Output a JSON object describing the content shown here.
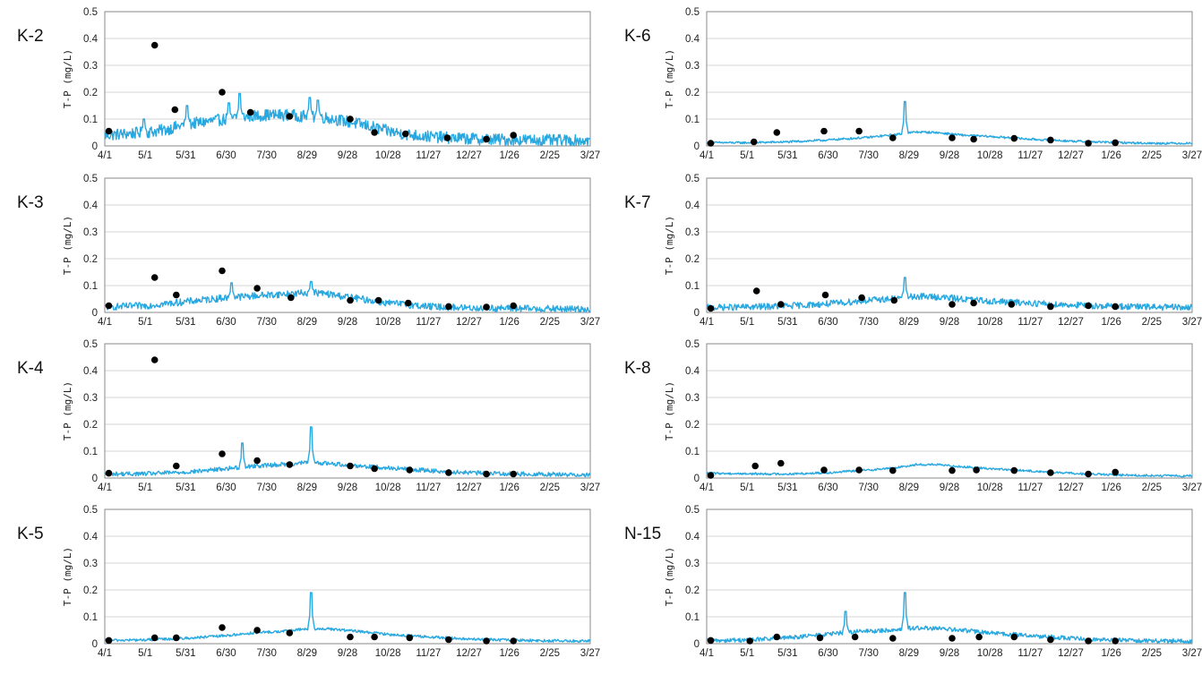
{
  "figure": {
    "line_color": "#29a8e0",
    "point_color": "#000000"
  },
  "chart_data": [
    {
      "type": "line",
      "station": "K-2",
      "ylabel": "T-P (mg/L)",
      "ylim": [
        0,
        0.5
      ],
      "yticks": [
        "0",
        "0.1",
        "0.2",
        "0.3",
        "0.4",
        "0.5"
      ],
      "xticks": [
        "4/1",
        "5/1",
        "5/31",
        "6/30",
        "7/30",
        "8/29",
        "9/28",
        "10/28",
        "11/27",
        "12/27",
        "1/26",
        "2/25",
        "3/27"
      ],
      "grid": true,
      "continuous_base": [
        [
          0,
          0.04
        ],
        [
          15,
          0.045
        ],
        [
          30,
          0.05
        ],
        [
          45,
          0.06
        ],
        [
          60,
          0.08
        ],
        [
          75,
          0.09
        ],
        [
          90,
          0.1
        ],
        [
          105,
          0.11
        ],
        [
          120,
          0.115
        ],
        [
          135,
          0.115
        ],
        [
          150,
          0.11
        ],
        [
          165,
          0.105
        ],
        [
          180,
          0.09
        ],
        [
          195,
          0.075
        ],
        [
          210,
          0.055
        ],
        [
          225,
          0.042
        ],
        [
          240,
          0.035
        ],
        [
          255,
          0.03
        ],
        [
          270,
          0.027
        ],
        [
          285,
          0.025
        ],
        [
          300,
          0.023
        ],
        [
          315,
          0.022
        ],
        [
          330,
          0.021
        ],
        [
          345,
          0.02
        ],
        [
          360,
          0.02
        ]
      ],
      "continuous_noise": 0.022,
      "continuous_spikes": [
        [
          29,
          0.1
        ],
        [
          61,
          0.15
        ],
        [
          92,
          0.16
        ],
        [
          100,
          0.195
        ],
        [
          152,
          0.18
        ],
        [
          158,
          0.17
        ]
      ],
      "samples": [
        [
          3,
          0.055
        ],
        [
          37,
          0.375
        ],
        [
          52,
          0.135
        ],
        [
          87,
          0.2
        ],
        [
          108,
          0.125
        ],
        [
          137,
          0.11
        ],
        [
          182,
          0.1
        ],
        [
          200,
          0.05
        ],
        [
          223,
          0.045
        ],
        [
          254,
          0.03
        ],
        [
          283,
          0.025
        ],
        [
          303,
          0.04
        ]
      ]
    },
    {
      "type": "line",
      "station": "K-6",
      "ylabel": "T-P (mg/L)",
      "ylim": [
        0,
        0.5
      ],
      "yticks": [
        "0",
        "0.1",
        "0.2",
        "0.3",
        "0.4",
        "0.5"
      ],
      "xticks": [
        "4/1",
        "5/1",
        "5/31",
        "6/30",
        "7/30",
        "8/29",
        "9/28",
        "10/28",
        "11/27",
        "12/27",
        "1/26",
        "2/25",
        "3/27"
      ],
      "grid": true,
      "continuous_base": [
        [
          0,
          0.012
        ],
        [
          30,
          0.012
        ],
        [
          60,
          0.015
        ],
        [
          90,
          0.022
        ],
        [
          120,
          0.032
        ],
        [
          140,
          0.042
        ],
        [
          155,
          0.052
        ],
        [
          170,
          0.05
        ],
        [
          190,
          0.04
        ],
        [
          210,
          0.035
        ],
        [
          240,
          0.025
        ],
        [
          270,
          0.018
        ],
        [
          300,
          0.013
        ],
        [
          330,
          0.01
        ],
        [
          360,
          0.01
        ]
      ],
      "continuous_noise": 0.004,
      "continuous_spikes": [
        [
          147,
          0.165
        ]
      ],
      "samples": [
        [
          3,
          0.01
        ],
        [
          35,
          0.015
        ],
        [
          52,
          0.05
        ],
        [
          87,
          0.055
        ],
        [
          113,
          0.055
        ],
        [
          138,
          0.03
        ],
        [
          182,
          0.03
        ],
        [
          198,
          0.025
        ],
        [
          228,
          0.028
        ],
        [
          255,
          0.022
        ],
        [
          283,
          0.01
        ],
        [
          303,
          0.012
        ]
      ]
    },
    {
      "type": "line",
      "station": "K-3",
      "ylabel": "T-P (mg/L)",
      "ylim": [
        0,
        0.5
      ],
      "yticks": [
        "0",
        "0.1",
        "0.2",
        "0.3",
        "0.4",
        "0.5"
      ],
      "xticks": [
        "4/1",
        "5/1",
        "5/31",
        "6/30",
        "7/30",
        "8/29",
        "9/28",
        "10/28",
        "11/27",
        "12/27",
        "1/26",
        "2/25",
        "3/27"
      ],
      "grid": true,
      "continuous_base": [
        [
          0,
          0.02
        ],
        [
          30,
          0.025
        ],
        [
          50,
          0.035
        ],
        [
          70,
          0.045
        ],
        [
          90,
          0.055
        ],
        [
          105,
          0.06
        ],
        [
          120,
          0.065
        ],
        [
          140,
          0.07
        ],
        [
          155,
          0.075
        ],
        [
          170,
          0.065
        ],
        [
          190,
          0.05
        ],
        [
          210,
          0.035
        ],
        [
          240,
          0.022
        ],
        [
          270,
          0.017
        ],
        [
          300,
          0.015
        ],
        [
          330,
          0.013
        ],
        [
          360,
          0.012
        ]
      ],
      "continuous_noise": 0.013,
      "continuous_spikes": [
        [
          94,
          0.11
        ],
        [
          153,
          0.115
        ]
      ],
      "samples": [
        [
          3,
          0.025
        ],
        [
          37,
          0.13
        ],
        [
          53,
          0.065
        ],
        [
          87,
          0.155
        ],
        [
          113,
          0.09
        ],
        [
          138,
          0.055
        ],
        [
          182,
          0.045
        ],
        [
          203,
          0.045
        ],
        [
          225,
          0.035
        ],
        [
          255,
          0.022
        ],
        [
          283,
          0.02
        ],
        [
          303,
          0.025
        ]
      ]
    },
    {
      "type": "line",
      "station": "K-7",
      "ylabel": "T-P (mg/L)",
      "ylim": [
        0,
        0.5
      ],
      "yticks": [
        "0",
        "0.1",
        "0.2",
        "0.3",
        "0.4",
        "0.5"
      ],
      "xticks": [
        "4/1",
        "5/1",
        "5/31",
        "6/30",
        "7/30",
        "8/29",
        "9/28",
        "10/28",
        "11/27",
        "12/27",
        "1/26",
        "2/25",
        "3/27"
      ],
      "grid": true,
      "continuous_base": [
        [
          0,
          0.018
        ],
        [
          30,
          0.02
        ],
        [
          60,
          0.024
        ],
        [
          90,
          0.032
        ],
        [
          120,
          0.045
        ],
        [
          140,
          0.052
        ],
        [
          155,
          0.06
        ],
        [
          170,
          0.058
        ],
        [
          190,
          0.05
        ],
        [
          210,
          0.042
        ],
        [
          240,
          0.035
        ],
        [
          270,
          0.028
        ],
        [
          300,
          0.023
        ],
        [
          330,
          0.02
        ],
        [
          360,
          0.018
        ]
      ],
      "continuous_noise": 0.012,
      "continuous_spikes": [
        [
          147,
          0.13
        ]
      ],
      "samples": [
        [
          3,
          0.015
        ],
        [
          37,
          0.08
        ],
        [
          55,
          0.03
        ],
        [
          88,
          0.065
        ],
        [
          115,
          0.055
        ],
        [
          139,
          0.045
        ],
        [
          182,
          0.03
        ],
        [
          198,
          0.035
        ],
        [
          226,
          0.03
        ],
        [
          255,
          0.022
        ],
        [
          283,
          0.025
        ],
        [
          303,
          0.022
        ]
      ]
    },
    {
      "type": "line",
      "station": "K-4",
      "ylabel": "T-P (mg/L)",
      "ylim": [
        0,
        0.5
      ],
      "yticks": [
        "0",
        "0.1",
        "0.2",
        "0.3",
        "0.4",
        "0.5"
      ],
      "xticks": [
        "4/1",
        "5/1",
        "5/31",
        "6/30",
        "7/30",
        "8/29",
        "9/28",
        "10/28",
        "11/27",
        "12/27",
        "1/26",
        "2/25",
        "3/27"
      ],
      "grid": true,
      "continuous_base": [
        [
          0,
          0.015
        ],
        [
          30,
          0.016
        ],
        [
          60,
          0.022
        ],
        [
          90,
          0.035
        ],
        [
          110,
          0.045
        ],
        [
          130,
          0.05
        ],
        [
          150,
          0.058
        ],
        [
          165,
          0.055
        ],
        [
          190,
          0.045
        ],
        [
          210,
          0.038
        ],
        [
          240,
          0.028
        ],
        [
          270,
          0.02
        ],
        [
          300,
          0.016
        ],
        [
          330,
          0.014
        ],
        [
          360,
          0.012
        ]
      ],
      "continuous_noise": 0.008,
      "continuous_spikes": [
        [
          102,
          0.13
        ],
        [
          153,
          0.19
        ]
      ],
      "samples": [
        [
          3,
          0.018
        ],
        [
          37,
          0.44
        ],
        [
          53,
          0.045
        ],
        [
          87,
          0.09
        ],
        [
          113,
          0.065
        ],
        [
          137,
          0.05
        ],
        [
          182,
          0.045
        ],
        [
          200,
          0.035
        ],
        [
          226,
          0.03
        ],
        [
          255,
          0.02
        ],
        [
          283,
          0.015
        ],
        [
          303,
          0.015
        ]
      ]
    },
    {
      "type": "line",
      "station": "K-8",
      "ylabel": "T-P (mg/L)",
      "ylim": [
        0,
        0.5
      ],
      "yticks": [
        "0",
        "0.1",
        "0.2",
        "0.3",
        "0.4",
        "0.5"
      ],
      "xticks": [
        "4/1",
        "5/1",
        "5/31",
        "6/30",
        "7/30",
        "8/29",
        "9/28",
        "10/28",
        "11/27",
        "12/27",
        "1/26",
        "2/25",
        "3/27"
      ],
      "grid": true,
      "continuous_base": [
        [
          0,
          0.018
        ],
        [
          30,
          0.016
        ],
        [
          60,
          0.015
        ],
        [
          90,
          0.02
        ],
        [
          120,
          0.03
        ],
        [
          140,
          0.038
        ],
        [
          155,
          0.05
        ],
        [
          170,
          0.05
        ],
        [
          190,
          0.042
        ],
        [
          210,
          0.035
        ],
        [
          240,
          0.026
        ],
        [
          270,
          0.018
        ],
        [
          300,
          0.012
        ],
        [
          330,
          0.009
        ],
        [
          360,
          0.008
        ]
      ],
      "continuous_noise": 0.004,
      "continuous_spikes": [],
      "samples": [
        [
          3,
          0.01
        ],
        [
          36,
          0.045
        ],
        [
          55,
          0.055
        ],
        [
          87,
          0.03
        ],
        [
          113,
          0.03
        ],
        [
          138,
          0.028
        ],
        [
          182,
          0.028
        ],
        [
          200,
          0.03
        ],
        [
          228,
          0.028
        ],
        [
          255,
          0.02
        ],
        [
          283,
          0.015
        ],
        [
          303,
          0.022
        ]
      ]
    },
    {
      "type": "line",
      "station": "K-5",
      "ylabel": "T-P (mg/L)",
      "ylim": [
        0,
        0.5
      ],
      "yticks": [
        "0",
        "0.1",
        "0.2",
        "0.3",
        "0.4",
        "0.5"
      ],
      "xticks": [
        "4/1",
        "5/1",
        "5/31",
        "6/30",
        "7/30",
        "8/29",
        "9/28",
        "10/28",
        "11/27",
        "12/27",
        "1/26",
        "2/25",
        "3/27"
      ],
      "grid": true,
      "continuous_base": [
        [
          0,
          0.012
        ],
        [
          30,
          0.014
        ],
        [
          60,
          0.02
        ],
        [
          90,
          0.03
        ],
        [
          110,
          0.04
        ],
        [
          130,
          0.045
        ],
        [
          150,
          0.055
        ],
        [
          165,
          0.055
        ],
        [
          190,
          0.045
        ],
        [
          210,
          0.035
        ],
        [
          240,
          0.025
        ],
        [
          270,
          0.017
        ],
        [
          300,
          0.013
        ],
        [
          330,
          0.011
        ],
        [
          360,
          0.01
        ]
      ],
      "continuous_noise": 0.005,
      "continuous_spikes": [
        [
          153,
          0.19
        ]
      ],
      "samples": [
        [
          3,
          0.012
        ],
        [
          37,
          0.022
        ],
        [
          53,
          0.022
        ],
        [
          87,
          0.06
        ],
        [
          113,
          0.05
        ],
        [
          137,
          0.04
        ],
        [
          182,
          0.025
        ],
        [
          200,
          0.025
        ],
        [
          226,
          0.022
        ],
        [
          255,
          0.015
        ],
        [
          283,
          0.01
        ],
        [
          303,
          0.01
        ]
      ]
    },
    {
      "type": "line",
      "station": "N-15",
      "ylabel": "T-P (mg/L)",
      "ylim": [
        0,
        0.5
      ],
      "yticks": [
        "0",
        "0.1",
        "0.2",
        "0.3",
        "0.4",
        "0.5"
      ],
      "xticks": [
        "4/1",
        "5/1",
        "5/31",
        "6/30",
        "7/30",
        "8/29",
        "9/28",
        "10/28",
        "11/27",
        "12/27",
        "1/26",
        "2/25",
        "3/27"
      ],
      "grid": true,
      "continuous_base": [
        [
          0,
          0.012
        ],
        [
          30,
          0.014
        ],
        [
          60,
          0.022
        ],
        [
          90,
          0.035
        ],
        [
          110,
          0.045
        ],
        [
          130,
          0.048
        ],
        [
          150,
          0.058
        ],
        [
          165,
          0.058
        ],
        [
          190,
          0.05
        ],
        [
          210,
          0.04
        ],
        [
          240,
          0.03
        ],
        [
          270,
          0.02
        ],
        [
          300,
          0.014
        ],
        [
          330,
          0.011
        ],
        [
          360,
          0.01
        ]
      ],
      "continuous_noise": 0.008,
      "continuous_spikes": [
        [
          103,
          0.12
        ],
        [
          147,
          0.19
        ]
      ],
      "samples": [
        [
          3,
          0.012
        ],
        [
          32,
          0.01
        ],
        [
          52,
          0.025
        ],
        [
          84,
          0.022
        ],
        [
          110,
          0.025
        ],
        [
          138,
          0.02
        ],
        [
          182,
          0.02
        ],
        [
          202,
          0.025
        ],
        [
          228,
          0.025
        ],
        [
          255,
          0.015
        ],
        [
          283,
          0.01
        ],
        [
          303,
          0.01
        ]
      ]
    }
  ]
}
